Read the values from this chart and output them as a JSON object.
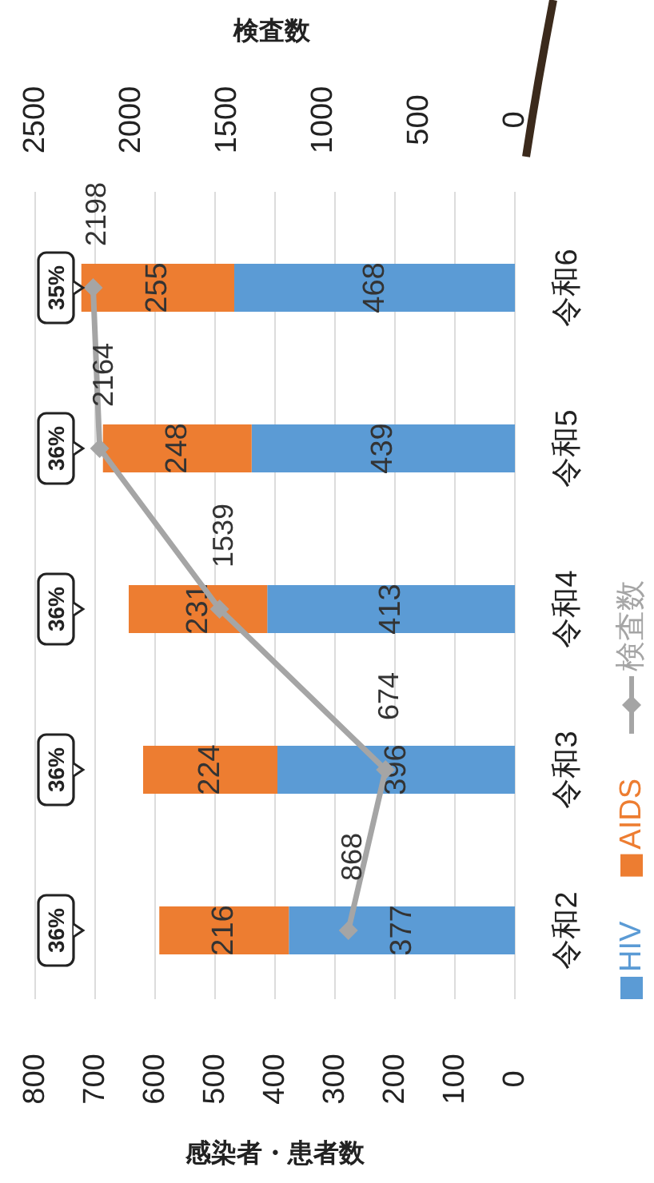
{
  "chart_data": {
    "type": "bar",
    "orientation": "horizontal",
    "stacked": true,
    "categories": [
      "令和6",
      "令和5",
      "令和4",
      "令和3",
      "令和2"
    ],
    "series": [
      {
        "name": "HIV",
        "color": "#5b9bd5",
        "values": [
          468,
          439,
          413,
          396,
          377
        ]
      },
      {
        "name": "AIDS",
        "color": "#ed7d31",
        "values": [
          255,
          248,
          231,
          224,
          216
        ]
      },
      {
        "name": "検査数",
        "type": "line",
        "axis": "x2",
        "color": "#a5a5a5",
        "marker": "diamond",
        "values": [
          2198,
          2164,
          1539,
          674,
          868
        ]
      }
    ],
    "xlim": [
      800,
      0
    ],
    "xticks": [
      0,
      100,
      200,
      300,
      400,
      500,
      600,
      700,
      800
    ],
    "x2lim": [
      2500,
      0
    ],
    "x2ticks": [
      0,
      500,
      1000,
      1500,
      2000,
      2500
    ],
    "xlabel": "感染者・患者数",
    "x2label": "検査数",
    "grid": "x",
    "legend": "right",
    "data_labels": true,
    "annotations": [
      "35%",
      "36%",
      "36%",
      "36%",
      "36%"
    ]
  }
}
